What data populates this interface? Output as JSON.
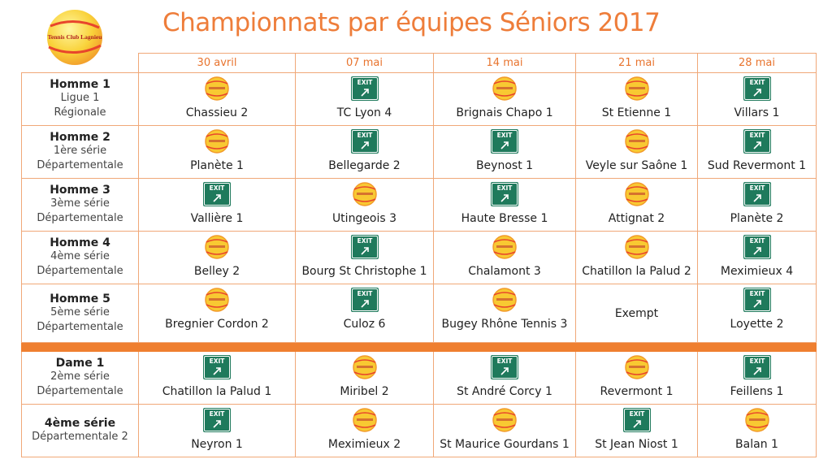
{
  "logo": {
    "text": "Tennis Club Lagnieu"
  },
  "header": {
    "title": "Championnats par équipes Séniors 2017"
  },
  "exit_sign": "EXIT",
  "table": {
    "dates": [
      "30 avril",
      "07 mai",
      "14 mai",
      "21 mai",
      "28 mai"
    ],
    "groups": [
      {
        "rows": [
          {
            "team": {
              "title": "Homme 1",
              "lines": [
                "Ligue 1",
                "Régionale"
              ]
            },
            "cells": [
              {
                "icon": "home",
                "name": "Chassieu 2"
              },
              {
                "icon": "away",
                "name": "TC Lyon 4"
              },
              {
                "icon": "home",
                "name": "Brignais Chapo 1"
              },
              {
                "icon": "home",
                "name": "St Etienne 1"
              },
              {
                "icon": "away",
                "name": "Villars 1"
              }
            ]
          },
          {
            "team": {
              "title": "Homme 2",
              "lines": [
                "1ère série",
                "Départementale"
              ]
            },
            "cells": [
              {
                "icon": "home",
                "name": "Planète 1"
              },
              {
                "icon": "away",
                "name": "Bellegarde 2"
              },
              {
                "icon": "away",
                "name": "Beynost 1"
              },
              {
                "icon": "home",
                "name": "Veyle sur Saône 1"
              },
              {
                "icon": "away",
                "name": "Sud Revermont 1"
              }
            ]
          },
          {
            "team": {
              "title": "Homme 3",
              "lines": [
                "3ème série",
                "Départementale"
              ]
            },
            "cells": [
              {
                "icon": "away",
                "name": "Vallière 1"
              },
              {
                "icon": "home",
                "name": "Utingeois 3"
              },
              {
                "icon": "away",
                "name": "Haute Bresse 1"
              },
              {
                "icon": "home",
                "name": "Attignat 2"
              },
              {
                "icon": "away",
                "name": "Planète 2"
              }
            ]
          },
          {
            "team": {
              "title": "Homme 4",
              "lines": [
                "4ème série",
                "Départementale"
              ]
            },
            "cells": [
              {
                "icon": "home",
                "name": "Belley 2"
              },
              {
                "icon": "away",
                "name": "Bourg St Christophe 1"
              },
              {
                "icon": "home",
                "name": "Chalamont 3"
              },
              {
                "icon": "home",
                "name": "Chatillon la Palud 2"
              },
              {
                "icon": "away",
                "name": "Meximieux 4"
              }
            ]
          },
          {
            "team": {
              "title": "Homme 5",
              "lines": [
                "5ème série",
                "Départementale"
              ]
            },
            "cells": [
              {
                "icon": "home",
                "name": "Bregnier Cordon 2"
              },
              {
                "icon": "away",
                "name": "Culoz 6"
              },
              {
                "icon": "home",
                "name": "Bugey Rhône Tennis 3"
              },
              {
                "name": "Exempt"
              },
              {
                "icon": "away",
                "name": "Loyette 2"
              }
            ]
          }
        ]
      },
      {
        "rows": [
          {
            "team": {
              "title": "Dame 1",
              "lines": [
                "2ème série",
                "Départementale"
              ]
            },
            "cells": [
              {
                "icon": "away",
                "name": "Chatillon la Palud 1"
              },
              {
                "icon": "home",
                "name": "Miribel 2"
              },
              {
                "icon": "away",
                "name": "St André Corcy 1"
              },
              {
                "icon": "home",
                "name": "Revermont 1"
              },
              {
                "icon": "away",
                "name": "Feillens 1"
              }
            ]
          },
          {
            "team": {
              "title": "4ème série",
              "lines": [
                "Départementale 2"
              ]
            },
            "cells": [
              {
                "icon": "away",
                "name": "Neyron 1"
              },
              {
                "icon": "home",
                "name": "Meximieux 2"
              },
              {
                "icon": "home",
                "name": "St Maurice Gourdans 1"
              },
              {
                "icon": "away",
                "name": "St Jean Niost 1"
              },
              {
                "icon": "home",
                "name": "Balan 1"
              }
            ]
          }
        ]
      }
    ]
  }
}
